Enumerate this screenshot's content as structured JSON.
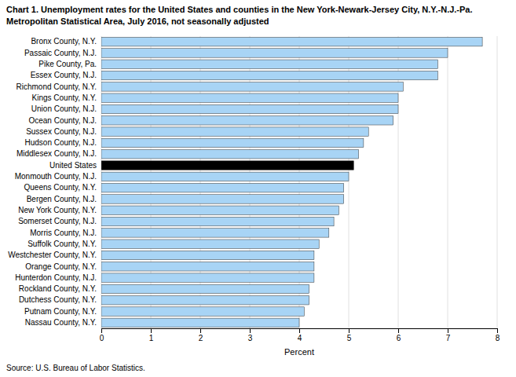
{
  "chart_data": {
    "type": "bar",
    "orientation": "horizontal",
    "title": "Chart 1. Unemployment rates for the United States and counties in the New York-Newark-Jersey City, N.Y.-N.J.-Pa.",
    "subtitle": "Metropolitan Statistical Area, July 2016, not seasonally adjusted",
    "categories": [
      "Nassau County, N.Y.",
      "Putnam County, N.Y.",
      "Dutchess County, N.Y.",
      "Rockland County, N.Y.",
      "Hunterdon County, N.J.",
      "Orange County, N.Y.",
      "Westchester County, N.Y.",
      "Suffolk County, N.Y.",
      "Morris County, N.J.",
      "Somerset County, N.J.",
      "New York County, N.Y.",
      "Bergen County, N.J.",
      "Queens County, N.Y.",
      "Monmouth County, N.J.",
      "United States",
      "Middlesex County, N.J.",
      "Hudson County, N.J.",
      "Sussex County, N.J.",
      "Ocean County, N.J.",
      "Union County, N.J.",
      "Kings County, N.Y.",
      "Richmond County, N.Y.",
      "Essex County, N.J.",
      "Pike County, Pa.",
      "Passaic County, N.J.",
      "Bronx County, N.Y."
    ],
    "values": [
      4.0,
      4.1,
      4.2,
      4.2,
      4.3,
      4.3,
      4.3,
      4.4,
      4.6,
      4.7,
      4.8,
      4.9,
      4.9,
      5.0,
      5.1,
      5.2,
      5.3,
      5.4,
      5.9,
      6.0,
      6.0,
      6.1,
      6.8,
      6.8,
      7.0,
      7.7
    ],
    "colors": [
      "#a8d4f5",
      "#a8d4f5",
      "#a8d4f5",
      "#a8d4f5",
      "#a8d4f5",
      "#a8d4f5",
      "#a8d4f5",
      "#a8d4f5",
      "#a8d4f5",
      "#a8d4f5",
      "#a8d4f5",
      "#a8d4f5",
      "#a8d4f5",
      "#a8d4f5",
      "#000000",
      "#a8d4f5",
      "#a8d4f5",
      "#a8d4f5",
      "#a8d4f5",
      "#a8d4f5",
      "#a8d4f5",
      "#a8d4f5",
      "#a8d4f5",
      "#a8d4f5",
      "#a8d4f5",
      "#a8d4f5"
    ],
    "xlim": [
      0,
      8
    ],
    "xticks": [
      0,
      1,
      2,
      3,
      4,
      5,
      6,
      7,
      8
    ],
    "xlabel": "Percent",
    "grid": true,
    "source": "Source: U.S. Bureau of Labor Statistics."
  }
}
